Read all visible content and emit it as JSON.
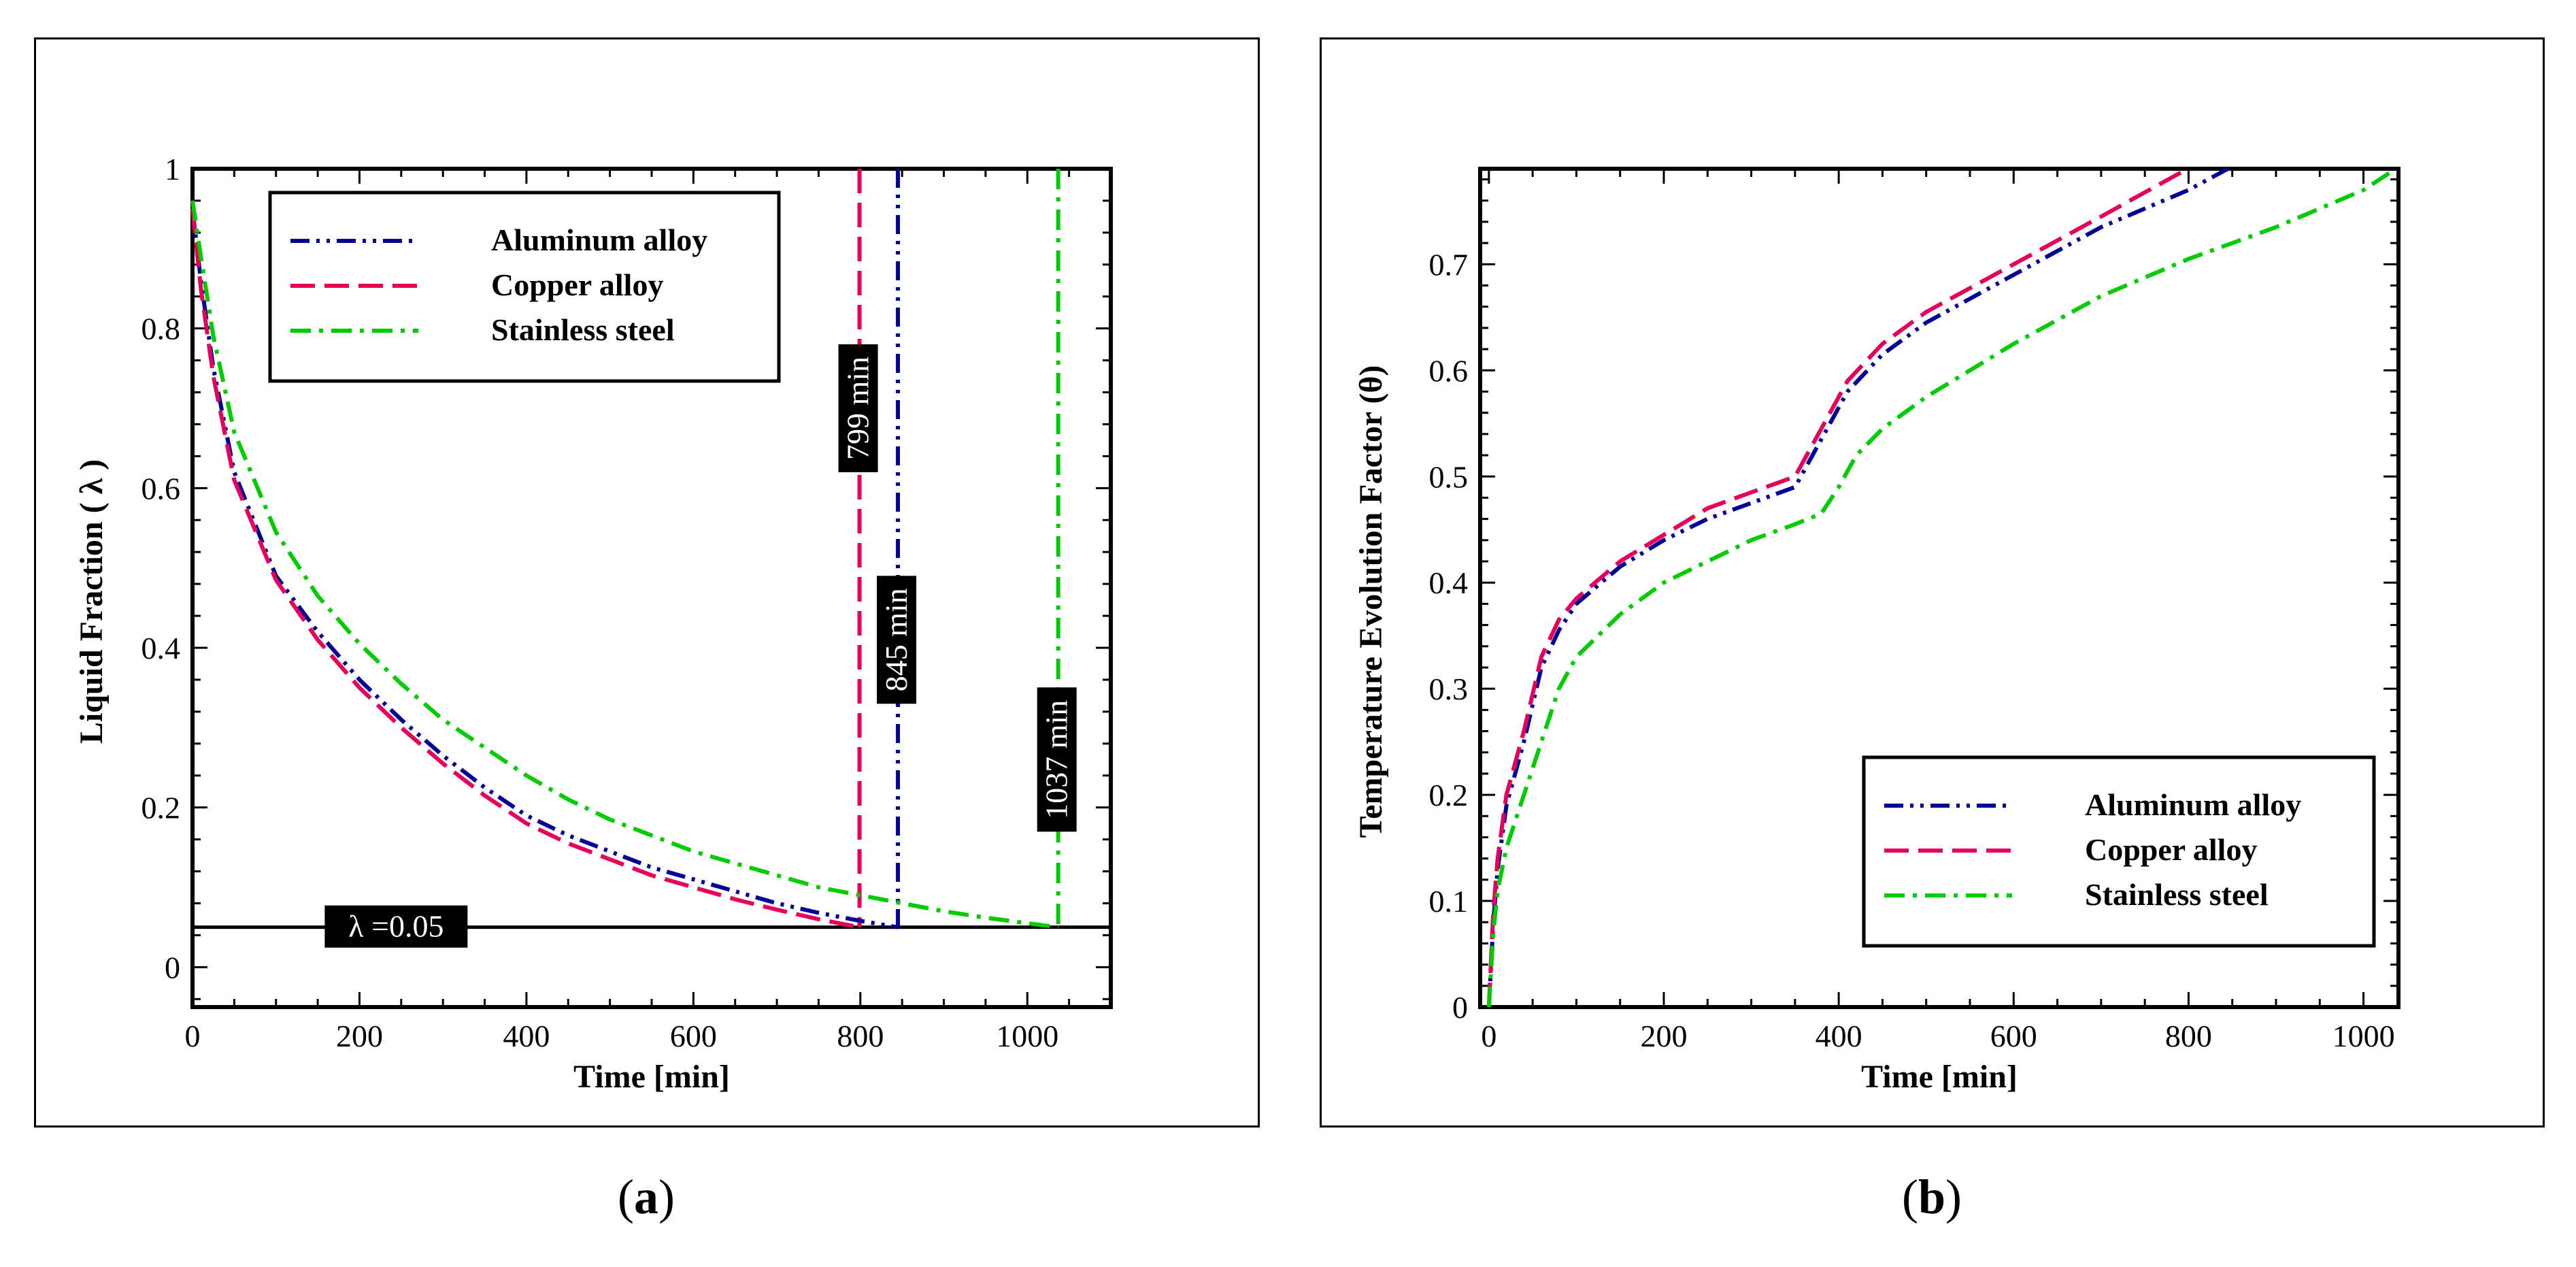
{
  "chart_data": [
    {
      "id": "a",
      "type": "line",
      "xlabel": "Time [min]",
      "ylabel": "Liquid Fraction ( λ )",
      "xlim": [
        0,
        1100
      ],
      "ylim": [
        -0.05,
        1
      ],
      "xticks": [
        0,
        200,
        400,
        600,
        800,
        1000
      ],
      "yticks": [
        0,
        0.2,
        0.4,
        0.6,
        0.8,
        1
      ],
      "tick_labels_x": [
        "0",
        "200",
        "400",
        "600",
        "800",
        "1000"
      ],
      "tick_labels_y": [
        "0",
        "0.2",
        "0.4",
        "0.6",
        "0.8",
        "1"
      ],
      "legend_position": "top-left",
      "series": [
        {
          "name": "Aluminum alloy",
          "color": "#000099",
          "dash": "dashdotdot",
          "x": [
            0,
            10,
            25,
            50,
            100,
            150,
            200,
            250,
            300,
            350,
            400,
            450,
            500,
            550,
            600,
            650,
            700,
            750,
            800,
            845
          ],
          "y": [
            0.95,
            0.86,
            0.75,
            0.62,
            0.49,
            0.42,
            0.36,
            0.31,
            0.265,
            0.225,
            0.19,
            0.165,
            0.145,
            0.125,
            0.11,
            0.095,
            0.08,
            0.068,
            0.058,
            0.05
          ]
        },
        {
          "name": "Copper alloy",
          "color": "#e6005c",
          "dash": "dashed",
          "x": [
            0,
            10,
            25,
            50,
            100,
            150,
            200,
            250,
            300,
            350,
            400,
            450,
            500,
            550,
            600,
            650,
            700,
            750,
            799
          ],
          "y": [
            0.95,
            0.85,
            0.74,
            0.61,
            0.485,
            0.41,
            0.35,
            0.3,
            0.255,
            0.215,
            0.18,
            0.155,
            0.135,
            0.115,
            0.1,
            0.085,
            0.072,
            0.06,
            0.05
          ]
        },
        {
          "name": "Stainless steel",
          "color": "#00cc00",
          "dash": "dashdot",
          "x": [
            0,
            10,
            25,
            50,
            100,
            150,
            200,
            250,
            300,
            350,
            400,
            450,
            500,
            550,
            600,
            650,
            700,
            750,
            800,
            850,
            900,
            950,
            1000,
            1037
          ],
          "y": [
            0.96,
            0.89,
            0.79,
            0.67,
            0.545,
            0.465,
            0.405,
            0.355,
            0.31,
            0.275,
            0.24,
            0.21,
            0.185,
            0.165,
            0.145,
            0.13,
            0.115,
            0.1,
            0.09,
            0.08,
            0.07,
            0.062,
            0.055,
            0.05
          ]
        }
      ],
      "vertical_lines": [
        {
          "x": 799,
          "color": "#e6005c",
          "dash": "dashed",
          "label": "799 min",
          "label_y": 0.7
        },
        {
          "x": 845,
          "color": "#000099",
          "dash": "dashdotdot",
          "label": "845 min",
          "label_y": 0.41
        },
        {
          "x": 1037,
          "color": "#00cc00",
          "dash": "dashdot",
          "label": "1037 min",
          "label_y": 0.26
        }
      ],
      "hline": {
        "y": 0.05,
        "label": "λ =0.05",
        "label_x": 160
      }
    },
    {
      "id": "b",
      "type": "line",
      "xlabel": "Time [min]",
      "ylabel": "Temperature Evolution Factor (θ)",
      "xlim": [
        -10,
        1040
      ],
      "ylim": [
        0,
        0.79
      ],
      "xticks": [
        0,
        200,
        400,
        600,
        800,
        1000
      ],
      "yticks": [
        0,
        0.1,
        0.2,
        0.3,
        0.4,
        0.5,
        0.6,
        0.7
      ],
      "tick_labels_x": [
        "0",
        "200",
        "400",
        "600",
        "800",
        "1000"
      ],
      "tick_labels_y": [
        "0",
        "0.1",
        "0.2",
        "0.3",
        "0.4",
        "0.5",
        "0.6",
        "0.7"
      ],
      "legend_position": "bottom-right",
      "series": [
        {
          "name": "Aluminum alloy",
          "color": "#000099",
          "dash": "dashdotdot",
          "x": [
            0,
            5,
            10,
            20,
            40,
            60,
            80,
            100,
            150,
            200,
            250,
            300,
            350,
            370,
            390,
            410,
            450,
            500,
            600,
            700,
            800,
            845
          ],
          "y": [
            0.0,
            0.08,
            0.13,
            0.19,
            0.25,
            0.32,
            0.355,
            0.38,
            0.415,
            0.44,
            0.46,
            0.475,
            0.49,
            0.52,
            0.55,
            0.58,
            0.615,
            0.645,
            0.69,
            0.735,
            0.77,
            0.79
          ]
        },
        {
          "name": "Copper alloy",
          "color": "#e6005c",
          "dash": "dashed",
          "x": [
            0,
            5,
            10,
            20,
            40,
            60,
            80,
            100,
            150,
            200,
            250,
            300,
            350,
            370,
            390,
            410,
            450,
            500,
            600,
            700,
            799
          ],
          "y": [
            0.0,
            0.09,
            0.14,
            0.2,
            0.26,
            0.33,
            0.365,
            0.385,
            0.42,
            0.445,
            0.47,
            0.485,
            0.5,
            0.53,
            0.56,
            0.59,
            0.625,
            0.655,
            0.7,
            0.745,
            0.79
          ]
        },
        {
          "name": "Stainless steel",
          "color": "#00cc00",
          "dash": "dashdot",
          "x": [
            0,
            5,
            10,
            20,
            40,
            60,
            80,
            100,
            150,
            200,
            250,
            300,
            350,
            380,
            400,
            420,
            450,
            500,
            600,
            700,
            800,
            900,
            1000,
            1037
          ],
          "y": [
            0.0,
            0.07,
            0.11,
            0.15,
            0.2,
            0.25,
            0.3,
            0.33,
            0.37,
            0.4,
            0.42,
            0.44,
            0.455,
            0.465,
            0.49,
            0.52,
            0.545,
            0.575,
            0.625,
            0.67,
            0.705,
            0.735,
            0.77,
            0.79
          ]
        }
      ]
    }
  ],
  "captions": {
    "a": "a",
    "b": "b"
  }
}
